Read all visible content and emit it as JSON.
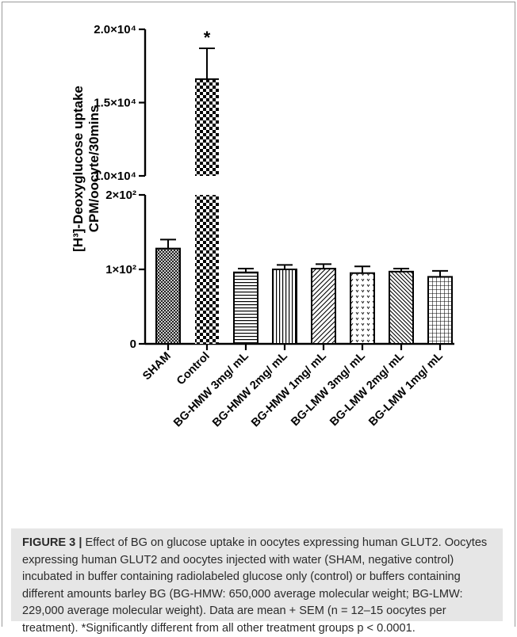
{
  "chart_data": {
    "type": "bar",
    "ylabel_line1": "[H³]-Deoxyglucose uptake",
    "ylabel_line2": "CPM/oocyte/30mins",
    "axis_break": {
      "lower_range": [
        0,
        200
      ],
      "upper_range": [
        10000,
        20000
      ]
    },
    "ytick_labels": [
      "0",
      "1×10²",
      "2×10²",
      "1.0×10⁴",
      "1.5×10⁴",
      "2.0×10⁴"
    ],
    "categories": [
      "SHAM",
      "Control",
      "BG-HMW 3mg/ mL",
      "BG-HMW 2mg/ mL",
      "BG-HMW 1mg/ mL",
      "BG-LMW 3mg/ mL",
      "BG-LMW 2mg/ mL",
      "BG-LMW 1mg/ mL"
    ],
    "values": [
      128,
      16600,
      96,
      100,
      101,
      95,
      97,
      90
    ],
    "errors": [
      12,
      2100,
      5,
      6,
      6,
      9,
      4,
      8
    ],
    "patterns": [
      "crosshatch",
      "checker",
      "horizontal",
      "vertical",
      "diagonal",
      "dots",
      "back-diagonal",
      "grid"
    ],
    "annotation": {
      "text": "*",
      "category": "Control"
    }
  },
  "caption": {
    "label": "FIGURE 3 |",
    "text": " Effect of BG on glucose uptake in oocytes expressing human GLUT2. Oocytes expressing human GLUT2 and oocytes injected with water (SHAM, negative control) incubated in buffer containing radiolabeled glucose only (control) or buffers containing different amounts barley BG (BG-HMW: 650,000 average molecular weight; BG-LMW: 229,000 average molecular weight). Data are mean + SEM (n = 12–15 oocytes per treatment). *Significantly different from all other treatment groups p < 0.0001."
  },
  "colors": {
    "bar_fill": "#000000",
    "background": "#ffffff",
    "caption_bg": "#e6e6e6"
  }
}
